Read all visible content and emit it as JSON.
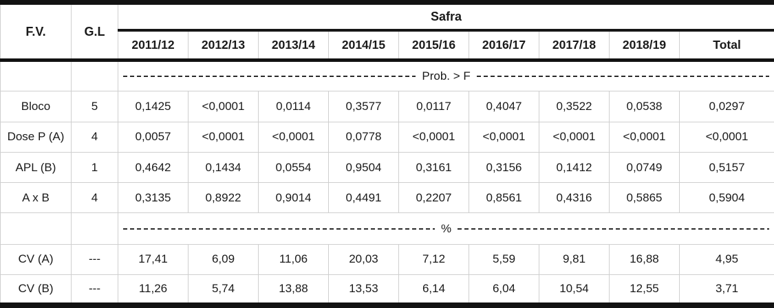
{
  "chart_data": {
    "type": "table",
    "header": {
      "fv": "F.V.",
      "gl": "G.L",
      "group_label": "Safra",
      "columns": [
        "2011/12",
        "2012/13",
        "2013/14",
        "2014/15",
        "2015/16",
        "2016/17",
        "2017/18",
        "2018/19",
        "Total"
      ]
    },
    "sections": [
      {
        "divider_label": "Prob. > F",
        "rows": [
          {
            "fv": "Bloco",
            "gl": "5",
            "values": [
              "0,1425",
              "<0,0001",
              "0,0114",
              "0,3577",
              "0,0117",
              "0,4047",
              "0,3522",
              "0,0538",
              "0,0297"
            ]
          },
          {
            "fv": "Dose P (A)",
            "gl": "4",
            "values": [
              "0,0057",
              "<0,0001",
              "<0,0001",
              "0,0778",
              "<0,0001",
              "<0,0001",
              "<0,0001",
              "<0,0001",
              "<0,0001"
            ]
          },
          {
            "fv": "APL (B)",
            "gl": "1",
            "values": [
              "0,4642",
              "0,1434",
              "0,0554",
              "0,9504",
              "0,3161",
              "0,3156",
              "0,1412",
              "0,0749",
              "0,5157"
            ]
          },
          {
            "fv": "A x B",
            "gl": "4",
            "values": [
              "0,3135",
              "0,8922",
              "0,9014",
              "0,4491",
              "0,2207",
              "0,8561",
              "0,4316",
              "0,5865",
              "0,5904"
            ]
          }
        ]
      },
      {
        "divider_label": "%",
        "rows": [
          {
            "fv": "CV (A)",
            "gl": "---",
            "values": [
              "17,41",
              "6,09",
              "11,06",
              "20,03",
              "7,12",
              "5,59",
              "9,81",
              "16,88",
              "4,95"
            ]
          },
          {
            "fv": "CV (B)",
            "gl": "---",
            "values": [
              "11,26",
              "5,74",
              "13,88",
              "13,53",
              "6,14",
              "6,04",
              "10,54",
              "12,55",
              "3,71"
            ]
          }
        ]
      }
    ],
    "colors": {
      "heavy_border": "#121212",
      "light_border": "#cfcfcf",
      "text": "#1a1a1a",
      "background": "#ffffff"
    }
  }
}
